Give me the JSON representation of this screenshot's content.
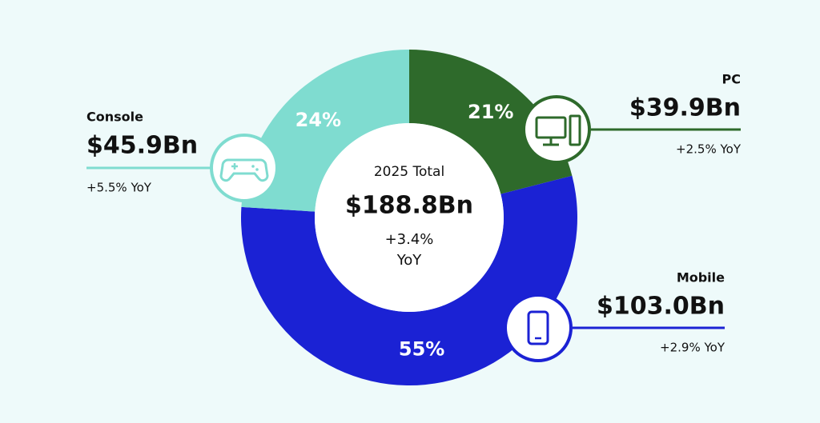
{
  "chart_data": {
    "type": "pie",
    "donut": true,
    "categories": [
      "PC",
      "Mobile",
      "Console"
    ],
    "values": [
      21,
      55,
      24
    ],
    "value_labels": [
      "21%",
      "55%",
      "24%"
    ],
    "colors": [
      "#2e6a2b",
      "#1b22d4",
      "#7fdcd0"
    ],
    "amounts": [
      "$39.9Bn",
      "$103.0Bn",
      "$45.9Bn"
    ],
    "growth": [
      "+2.5% YoY",
      "+2.9% YoY",
      "+5.5% YoY"
    ],
    "center": {
      "label": "2025 Total",
      "total": "$188.8Bn",
      "growth": "+3.4%",
      "growth_unit": "YoY"
    }
  }
}
